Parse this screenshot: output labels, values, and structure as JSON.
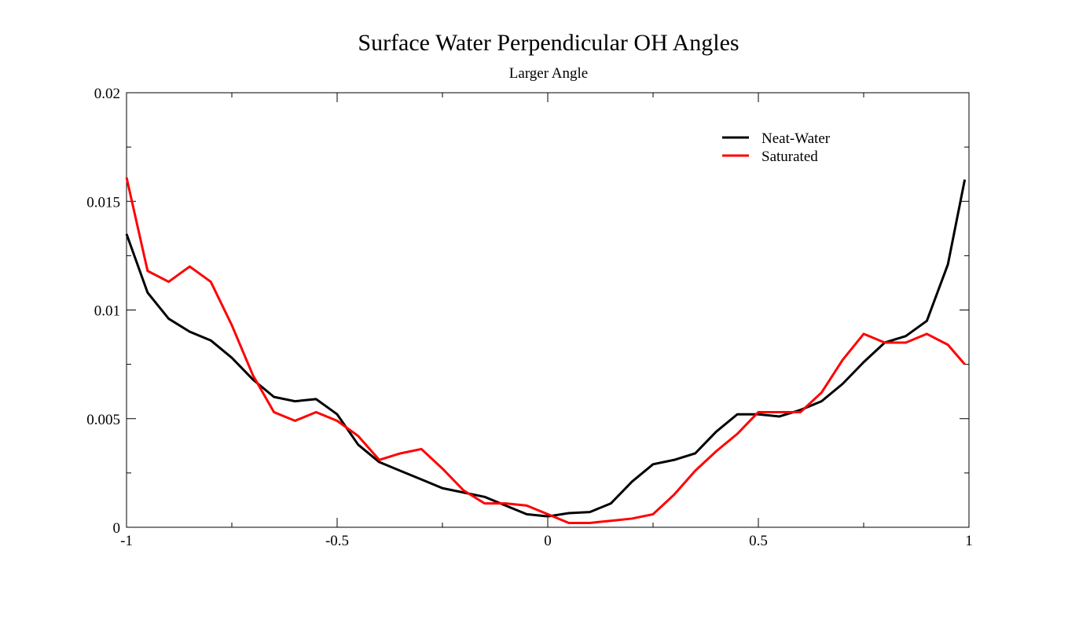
{
  "chart_data": {
    "type": "line",
    "title": "Surface Water Perpendicular OH Angles",
    "subtitle": "Larger Angle",
    "x": [
      -1,
      -0.95,
      -0.9,
      -0.85,
      -0.8,
      -0.75,
      -0.7,
      -0.65,
      -0.6,
      -0.55,
      -0.5,
      -0.45,
      -0.4,
      -0.35,
      -0.3,
      -0.25,
      -0.2,
      -0.15,
      -0.1,
      -0.05,
      0,
      0.05,
      0.1,
      0.15,
      0.2,
      0.25,
      0.3,
      0.35,
      0.4,
      0.45,
      0.5,
      0.55,
      0.6,
      0.65,
      0.7,
      0.75,
      0.8,
      0.85,
      0.9,
      0.95,
      0.99
    ],
    "series": [
      {
        "name": "Neat-Water",
        "color": "#000000",
        "values": [
          0.0135,
          0.0108,
          0.0096,
          0.009,
          0.0086,
          0.0078,
          0.0068,
          0.006,
          0.0058,
          0.0059,
          0.0052,
          0.0038,
          0.003,
          0.0026,
          0.0022,
          0.0018,
          0.0016,
          0.0014,
          0.001,
          0.0006,
          0.0005,
          0.00065,
          0.0007,
          0.0011,
          0.0021,
          0.0029,
          0.0031,
          0.0034,
          0.0044,
          0.0052,
          0.0052,
          0.0051,
          0.0054,
          0.0058,
          0.0066,
          0.0076,
          0.0085,
          0.0088,
          0.0095,
          0.0121,
          0.016
        ]
      },
      {
        "name": "Saturated",
        "color": "#ff0000",
        "values": [
          0.0161,
          0.0118,
          0.0113,
          0.012,
          0.0113,
          0.0093,
          0.007,
          0.0053,
          0.0049,
          0.0053,
          0.0049,
          0.0042,
          0.0031,
          0.0034,
          0.0036,
          0.0027,
          0.0017,
          0.0011,
          0.0011,
          0.001,
          0.0006,
          0.0002,
          0.0002,
          0.0003,
          0.0004,
          0.0006,
          0.0015,
          0.0026,
          0.0035,
          0.0043,
          0.0053,
          0.0053,
          0.0053,
          0.0062,
          0.0077,
          0.0089,
          0.0085,
          0.0085,
          0.0089,
          0.0084,
          0.0075
        ]
      }
    ],
    "xlim": [
      -1,
      1
    ],
    "xticks": [
      -1,
      -0.5,
      0,
      0.5,
      1
    ],
    "xminorticks": [
      -0.75,
      -0.25,
      0.25,
      0.75
    ],
    "ylim": [
      0,
      0.02
    ],
    "yticks": [
      0,
      0.005,
      0.01,
      0.015,
      0.02
    ],
    "yminorticks": [
      0.0025,
      0.0075,
      0.0125,
      0.0175
    ],
    "legend": "upper-right"
  }
}
